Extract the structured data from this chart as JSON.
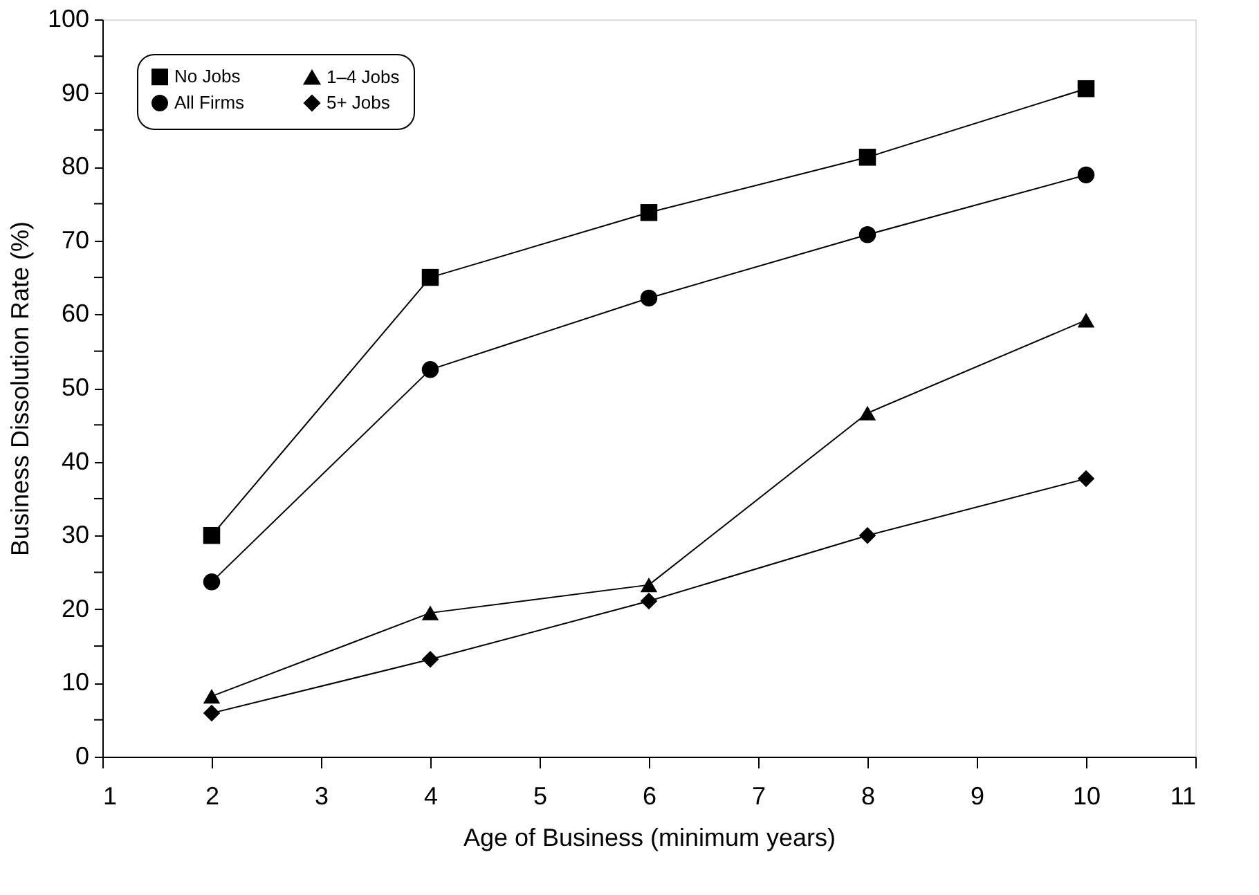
{
  "chart_data": {
    "type": "line",
    "xlabel": "Age of Business (minimum years)",
    "ylabel": "Business Dissolution Rate (%)",
    "x": [
      2,
      4,
      6,
      8,
      10
    ],
    "series": [
      {
        "name": "No Jobs",
        "color": "#000000",
        "marker": "square",
        "values": [
          30,
          65,
          73.8,
          81.3,
          90.6
        ]
      },
      {
        "name": "All Firms",
        "color": "#000000",
        "marker": "circle",
        "values": [
          23.7,
          52.5,
          62.2,
          70.8,
          78.9
        ]
      },
      {
        "name": "1–4 Jobs",
        "color": "#000000",
        "marker": "triangle",
        "values": [
          8.2,
          19.5,
          23.3,
          46.6,
          59.2
        ]
      },
      {
        "name": "5+ Jobs",
        "color": "#000000",
        "marker": "diamond",
        "values": [
          5.9,
          13.2,
          21.1,
          30,
          37.7
        ]
      }
    ],
    "xlim": [
      1,
      11
    ],
    "xticks": [
      1,
      2,
      3,
      4,
      5,
      6,
      7,
      8,
      9,
      10,
      11
    ],
    "ylim": [
      0,
      100
    ],
    "yticks": [
      0,
      {
        "value": 5,
        "label": null
      },
      10,
      {
        "value": 15,
        "label": null
      },
      20,
      {
        "value": 25,
        "label": null
      },
      30,
      {
        "value": 35,
        "label": null
      },
      40,
      {
        "value": 45,
        "label": null
      },
      50,
      {
        "value": 55,
        "label": null
      },
      60,
      {
        "value": 65,
        "label": null
      },
      70,
      {
        "value": 75,
        "label": null
      },
      80,
      {
        "value": 85,
        "label": null
      },
      90,
      {
        "value": 95,
        "label": null
      },
      100
    ],
    "grid": false,
    "legend": "top left",
    "line_style": "solid"
  }
}
